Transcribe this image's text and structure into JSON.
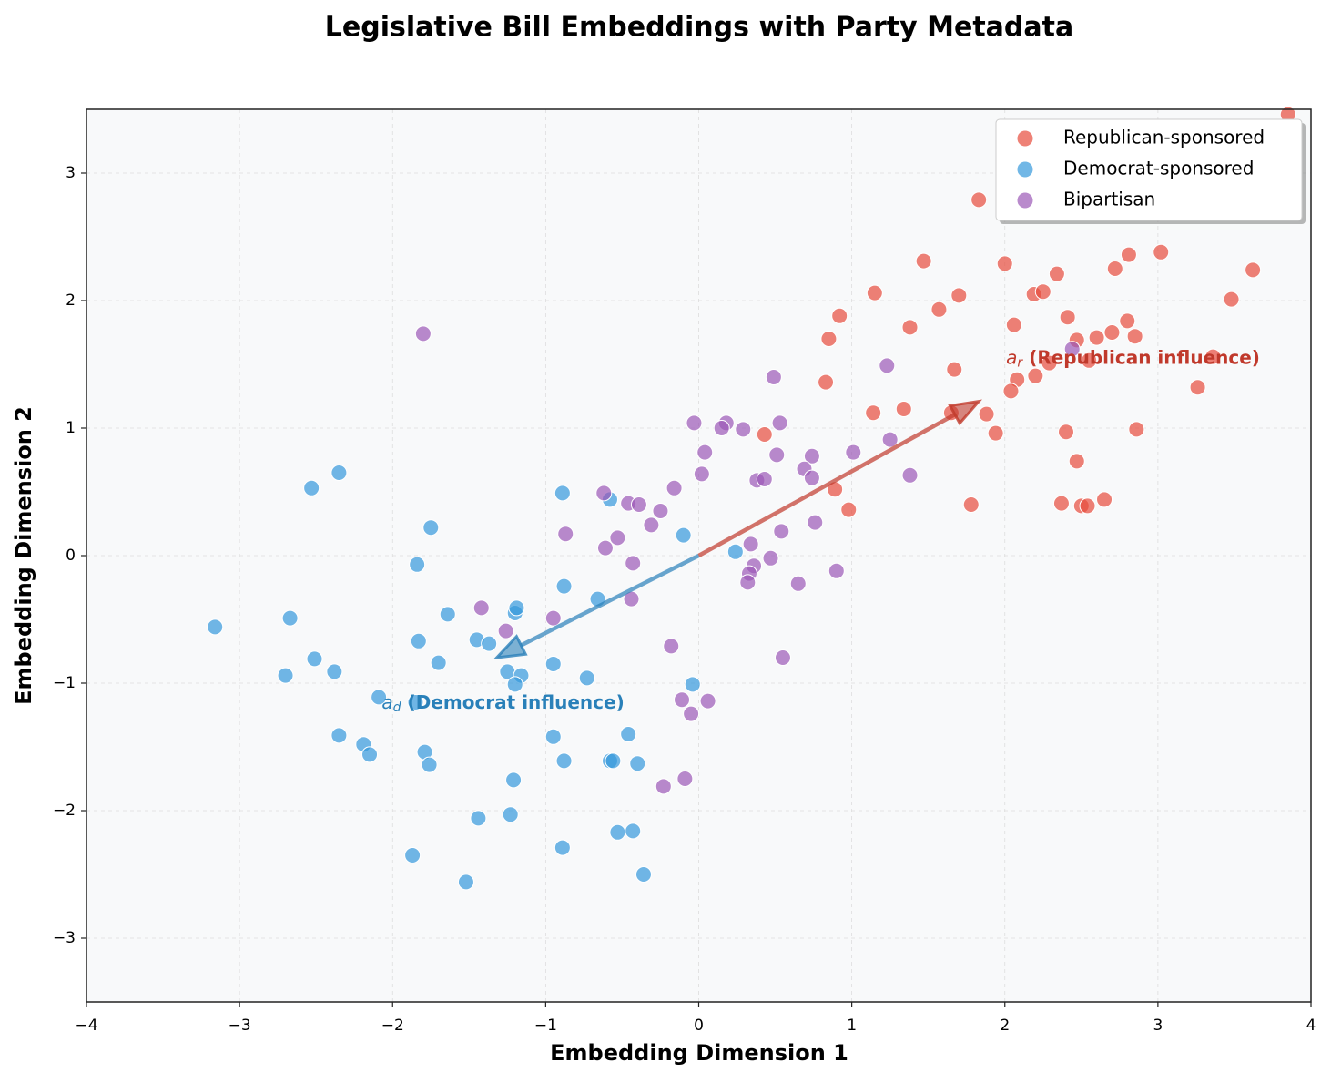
{
  "chart_data": {
    "type": "scatter",
    "title": "Legislative Bill Embeddings with Party Metadata",
    "xlabel": "Embedding Dimension 1",
    "ylabel": "Embedding Dimension 2",
    "xlim": [
      -4,
      4
    ],
    "ylim": [
      -3.5,
      3.5
    ],
    "xticks": [
      {
        "value": -4,
        "label": "−4"
      },
      {
        "value": -3,
        "label": "−3"
      },
      {
        "value": -2,
        "label": "−2"
      },
      {
        "value": -1,
        "label": "−1"
      },
      0,
      1,
      2,
      3,
      4
    ],
    "yticks": [
      {
        "value": -3,
        "label": "−3"
      },
      {
        "value": -2,
        "label": "−2"
      },
      {
        "value": -1,
        "label": "−1"
      },
      0,
      1,
      2,
      3
    ],
    "grid": true,
    "legend": "upper right",
    "series": [
      {
        "name": "Republican-sponsored",
        "color": "#e74c3c",
        "x": [
          3.85,
          1.83,
          1.47,
          2.0,
          1.15,
          1.7,
          2.19,
          2.25,
          2.34,
          2.72,
          2.81,
          3.02,
          3.62,
          3.48,
          0.92,
          1.57,
          1.38,
          2.06,
          2.41,
          2.8,
          0.85,
          2.47,
          2.6,
          2.7,
          2.85,
          1.67,
          2.55,
          2.29,
          3.36,
          0.83,
          2.08,
          2.2,
          2.04,
          3.26,
          1.34,
          1.14,
          1.65,
          1.88,
          0.43,
          1.94,
          2.4,
          2.86,
          2.47,
          0.89,
          0.98,
          1.78,
          2.37,
          2.5,
          2.54,
          2.65
        ],
        "values": [
          3.46,
          2.79,
          2.31,
          2.29,
          2.06,
          2.04,
          2.05,
          2.07,
          2.21,
          2.25,
          2.36,
          2.38,
          2.24,
          2.01,
          1.88,
          1.93,
          1.79,
          1.81,
          1.87,
          1.84,
          1.7,
          1.69,
          1.71,
          1.75,
          1.72,
          1.46,
          1.53,
          1.51,
          1.56,
          1.36,
          1.38,
          1.41,
          1.29,
          1.32,
          1.15,
          1.12,
          1.12,
          1.11,
          0.95,
          0.96,
          0.97,
          0.99,
          0.74,
          0.52,
          0.36,
          0.4,
          0.41,
          0.39,
          0.39,
          0.44
        ]
      },
      {
        "name": "Democrat-sponsored",
        "color": "#3498db",
        "x": [
          -3.16,
          -2.53,
          -2.35,
          -2.67,
          -2.7,
          -2.51,
          -2.38,
          -2.09,
          -1.85,
          -2.35,
          -2.19,
          -2.15,
          -1.79,
          -1.76,
          -1.75,
          -1.84,
          -1.83,
          -1.7,
          -1.64,
          -1.45,
          -1.37,
          -1.2,
          -1.19,
          -1.25,
          -1.16,
          -1.2,
          -1.21,
          -1.23,
          -1.44,
          -1.87,
          -1.52,
          -0.89,
          -0.58,
          -0.88,
          -0.66,
          -0.1,
          0.24,
          -0.95,
          -0.73,
          -0.04,
          -0.95,
          -0.88,
          -0.58,
          -0.56,
          -0.46,
          -0.4,
          -0.89,
          -0.53,
          -0.43,
          -0.36
        ],
        "values": [
          -0.56,
          0.53,
          0.65,
          -0.49,
          -0.94,
          -0.81,
          -0.91,
          -1.11,
          -1.15,
          -1.41,
          -1.48,
          -1.56,
          -1.54,
          -1.64,
          0.22,
          -0.07,
          -0.67,
          -0.84,
          -0.46,
          -0.66,
          -0.69,
          -0.45,
          -0.41,
          -0.91,
          -0.94,
          -1.01,
          -1.76,
          -2.03,
          -2.06,
          -2.35,
          -2.56,
          0.49,
          0.44,
          -0.24,
          -0.34,
          0.16,
          0.03,
          -0.85,
          -0.96,
          -1.01,
          -1.42,
          -1.61,
          -1.61,
          -1.61,
          -1.4,
          -1.63,
          -2.29,
          -2.17,
          -2.16,
          -2.5
        ]
      },
      {
        "name": "Bipartisan",
        "color": "#9b59b6",
        "x": [
          -1.8,
          -0.03,
          0.18,
          0.53,
          0.15,
          0.29,
          0.49,
          1.23,
          2.44,
          0.04,
          0.51,
          0.74,
          1.01,
          1.25,
          0.02,
          0.38,
          0.43,
          0.69,
          0.74,
          1.38,
          -0.16,
          -0.62,
          -0.46,
          -0.39,
          -0.25,
          -0.31,
          -0.87,
          -0.53,
          -0.61,
          0.34,
          0.54,
          0.76,
          -0.43,
          0.47,
          0.36,
          0.33,
          0.32,
          0.65,
          0.9,
          -0.44,
          -1.42,
          -1.26,
          -0.95,
          -0.18,
          0.55,
          -0.11,
          0.06,
          -0.05,
          -0.09,
          -0.23
        ],
        "values": [
          1.74,
          1.04,
          1.04,
          1.04,
          1.0,
          0.99,
          1.4,
          1.49,
          1.62,
          0.81,
          0.79,
          0.78,
          0.81,
          0.91,
          0.64,
          0.59,
          0.6,
          0.68,
          0.61,
          0.63,
          0.53,
          0.49,
          0.41,
          0.4,
          0.35,
          0.24,
          0.17,
          0.14,
          0.06,
          0.09,
          0.19,
          0.26,
          -0.06,
          -0.02,
          -0.08,
          -0.14,
          -0.21,
          -0.22,
          -0.12,
          -0.34,
          -0.41,
          -0.59,
          -0.49,
          -0.71,
          -0.8,
          -1.13,
          -1.14,
          -1.24,
          -1.75,
          -1.81
        ]
      }
    ],
    "arrows": [
      {
        "symbol": "a",
        "subscript": "r",
        "text": "(Republican influence)",
        "color": "#c0392b",
        "from": [
          0,
          0
        ],
        "to": [
          1.83,
          1.21
        ]
      },
      {
        "symbol": "a",
        "subscript": "d",
        "text": "(Democrat influence)",
        "color": "#2980b9",
        "from": [
          0,
          0
        ],
        "to": [
          -1.32,
          -0.8
        ]
      }
    ]
  }
}
